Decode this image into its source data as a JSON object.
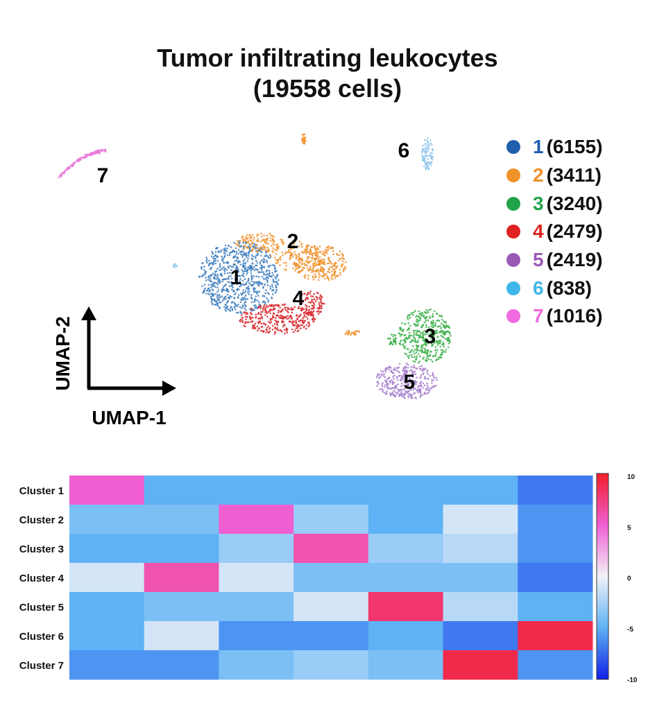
{
  "title": "Tumor infiltrating leukocytes",
  "subtitle": "(19558 cells)",
  "axes": {
    "x_label": "UMAP-1",
    "y_label": "UMAP-2"
  },
  "legend": [
    {
      "id": "1",
      "count": "(6155)",
      "color": "#1f5fad"
    },
    {
      "id": "2",
      "count": "(3411)",
      "color": "#f0912a"
    },
    {
      "id": "3",
      "count": "(3240)",
      "color": "#22a34a"
    },
    {
      "id": "4",
      "count": "(2479)",
      "color": "#e02222"
    },
    {
      "id": "5",
      "count": "(2419)",
      "color": "#9b59b6"
    },
    {
      "id": "6",
      "count": "(838)",
      "color": "#3fb6ea"
    },
    {
      "id": "7",
      "count": "(1016)",
      "color": "#f06be0"
    }
  ],
  "chart_data": [
    {
      "type": "scatter",
      "title": "Tumor infiltrating leukocytes",
      "subtitle": "(19558 cells)",
      "xlabel": "UMAP-1",
      "ylabel": "UMAP-2",
      "series": [
        {
          "name": "1",
          "count": 6155,
          "color": "#3f7fbf",
          "cluster_label": "1"
        },
        {
          "name": "2",
          "count": 3411,
          "color": "#f0912a",
          "cluster_label": "2"
        },
        {
          "name": "3",
          "count": 3240,
          "color": "#3cb04a",
          "cluster_label": "3"
        },
        {
          "name": "4",
          "count": 2479,
          "color": "#d9282d",
          "cluster_label": "4"
        },
        {
          "name": "5",
          "count": 2419,
          "color": "#a47ccc",
          "cluster_label": "5"
        },
        {
          "name": "6",
          "count": 838,
          "color": "#8ec5ea",
          "cluster_label": "6"
        },
        {
          "name": "7",
          "count": 1016,
          "color": "#ea79d8",
          "cluster_label": "7"
        }
      ]
    },
    {
      "type": "heatmap",
      "rows": [
        "Cluster 1",
        "Cluster 2",
        "Cluster 3",
        "Cluster 4",
        "Cluster 5",
        "Cluster 6",
        "Cluster 7"
      ],
      "n_columns": 7,
      "values": [
        [
          5,
          -5,
          -5,
          -5,
          -5,
          -5,
          -7
        ],
        [
          -4,
          -4,
          5,
          -3,
          -5,
          -1,
          -6
        ],
        [
          -5,
          -5,
          -3,
          6,
          -3,
          -2,
          -6
        ],
        [
          -1,
          6,
          -1,
          -4,
          -4,
          -4,
          -7
        ],
        [
          -5,
          -4,
          -4,
          -1,
          8,
          -2,
          -5
        ],
        [
          -5,
          -1,
          -6,
          -6,
          -5,
          -7,
          9
        ],
        [
          -6,
          -6,
          -4,
          -3,
          -4,
          9,
          -6
        ]
      ],
      "colorbar": {
        "min": -10,
        "max": 10,
        "ticks": [
          "10",
          "5",
          "0",
          "-5",
          "-10"
        ]
      }
    }
  ]
}
